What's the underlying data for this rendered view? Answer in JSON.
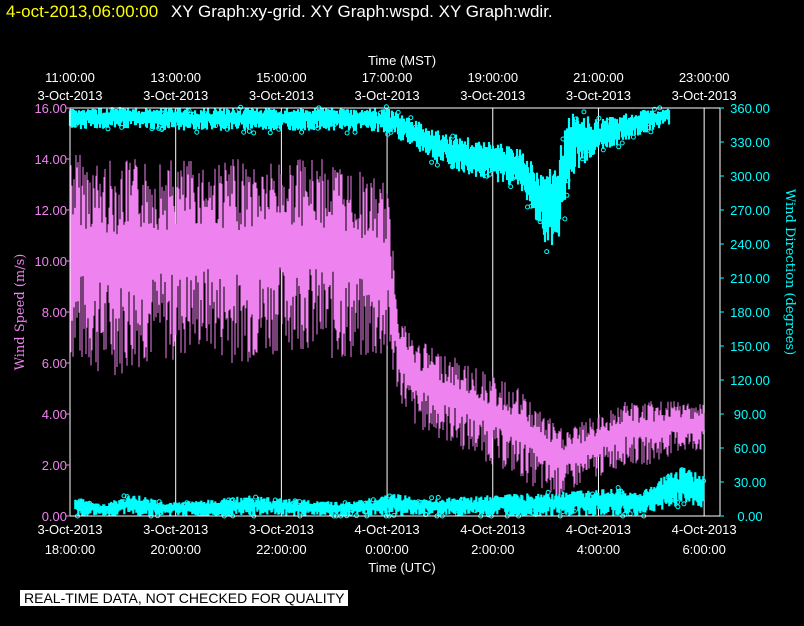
{
  "header": {
    "timestamp": "4-oct-2013,06:00:00",
    "graphs": "XY Graph:xy-grid.  XY Graph:wspd.  XY Graph:wdir."
  },
  "disclaimer": "REAL-TIME DATA, NOT CHECKED FOR QUALITY",
  "colors": {
    "background": "#000000",
    "wind_speed": "#ee82ee",
    "wind_direction": "#00ffff",
    "grid": "#ffffff",
    "timestamp": "#ffff00"
  },
  "chart_data": {
    "type": "line",
    "grid": true,
    "top_axis": {
      "label": "Time (MST)",
      "ticks": [
        {
          "time": "11:00:00",
          "date": "3-Oct-2013"
        },
        {
          "time": "13:00:00",
          "date": "3-Oct-2013"
        },
        {
          "time": "15:00:00",
          "date": "3-Oct-2013"
        },
        {
          "time": "17:00:00",
          "date": "3-Oct-2013"
        },
        {
          "time": "19:00:00",
          "date": "3-Oct-2013"
        },
        {
          "time": "21:00:00",
          "date": "3-Oct-2013"
        },
        {
          "time": "23:00:00",
          "date": "3-Oct-2013"
        }
      ]
    },
    "bottom_axis": {
      "label": "Time (UTC)",
      "ticks": [
        {
          "date": "3-Oct-2013",
          "time": "18:00:00"
        },
        {
          "date": "3-Oct-2013",
          "time": "20:00:00"
        },
        {
          "date": "3-Oct-2013",
          "time": "22:00:00"
        },
        {
          "date": "4-Oct-2013",
          "time": "0:00:00"
        },
        {
          "date": "4-Oct-2013",
          "time": "2:00:00"
        },
        {
          "date": "4-Oct-2013",
          "time": "4:00:00"
        },
        {
          "date": "4-Oct-2013",
          "time": "6:00:00"
        }
      ],
      "xlim_hours_utc": [
        18,
        30.3
      ]
    },
    "left_axis": {
      "label": "Wind Speed (m/s)",
      "ylim": [
        0,
        16
      ],
      "ticks": [
        "0.00",
        "2.00",
        "4.00",
        "6.00",
        "8.00",
        "10.00",
        "12.00",
        "14.00",
        "16.00"
      ]
    },
    "right_axis": {
      "label": "Wind Direction (degrees)",
      "ylim": [
        0,
        360
      ],
      "ticks": [
        "0.00",
        "30.00",
        "60.00",
        "90.00",
        "120.00",
        "150.00",
        "180.00",
        "210.00",
        "240.00",
        "270.00",
        "300.00",
        "330.00",
        "360.00"
      ]
    },
    "series": [
      {
        "name": "Wind Speed (m/s)",
        "axis": "left",
        "x_hours_utc": [
          18.0,
          18.5,
          19.0,
          19.5,
          20.0,
          20.5,
          21.0,
          21.5,
          22.0,
          22.5,
          23.0,
          23.5,
          24.0,
          24.25,
          24.5,
          25.0,
          25.5,
          26.0,
          26.5,
          27.0,
          27.25,
          27.5,
          28.0,
          28.5,
          29.0,
          29.5,
          30.0
        ],
        "low": [
          6.0,
          5.5,
          5.5,
          6.0,
          6.0,
          6.5,
          6.0,
          6.0,
          6.5,
          6.5,
          6.0,
          6.0,
          6.0,
          4.5,
          3.5,
          3.0,
          2.5,
          2.0,
          1.5,
          0.8,
          0.6,
          1.0,
          1.5,
          2.0,
          2.0,
          2.5,
          2.5
        ],
        "high": [
          14.5,
          14.0,
          14.0,
          14.0,
          14.0,
          14.0,
          14.0,
          14.0,
          14.0,
          14.0,
          14.0,
          13.5,
          13.0,
          8.0,
          7.0,
          6.5,
          6.0,
          5.5,
          5.0,
          4.0,
          3.5,
          3.5,
          4.0,
          4.5,
          4.5,
          4.5,
          4.5
        ]
      },
      {
        "name": "Wind Direction (degrees)",
        "axis": "right",
        "x_hours_utc": [
          18.0,
          19.0,
          20.0,
          21.0,
          22.0,
          23.0,
          24.0,
          24.5,
          25.0,
          25.5,
          26.0,
          26.5,
          27.0,
          27.2,
          27.5,
          28.0,
          28.5,
          29.0,
          29.35
        ],
        "low": [
          340,
          342,
          340,
          340,
          340,
          340,
          338,
          325,
          310,
          300,
          295,
          290,
          240,
          230,
          300,
          320,
          330,
          340,
          345
        ],
        "high": [
          360,
          360,
          360,
          360,
          360,
          360,
          360,
          350,
          340,
          335,
          330,
          325,
          300,
          320,
          360,
          350,
          355,
          360,
          360
        ]
      },
      {
        "name": "Wind Direction near 0 (degrees)",
        "axis": "right",
        "x_hours_utc": [
          18.1,
          18.6,
          19.2,
          19.8,
          20.7,
          21.4,
          23.2,
          24.2,
          24.6,
          27.4,
          28.3,
          28.8,
          29.2,
          29.6,
          30.0
        ],
        "low": [
          0,
          0,
          0,
          0,
          0,
          0,
          0,
          0,
          0,
          0,
          0,
          0,
          5,
          10,
          5
        ],
        "high": [
          18,
          10,
          20,
          12,
          15,
          18,
          12,
          20,
          15,
          22,
          25,
          20,
          35,
          45,
          35
        ]
      }
    ]
  }
}
